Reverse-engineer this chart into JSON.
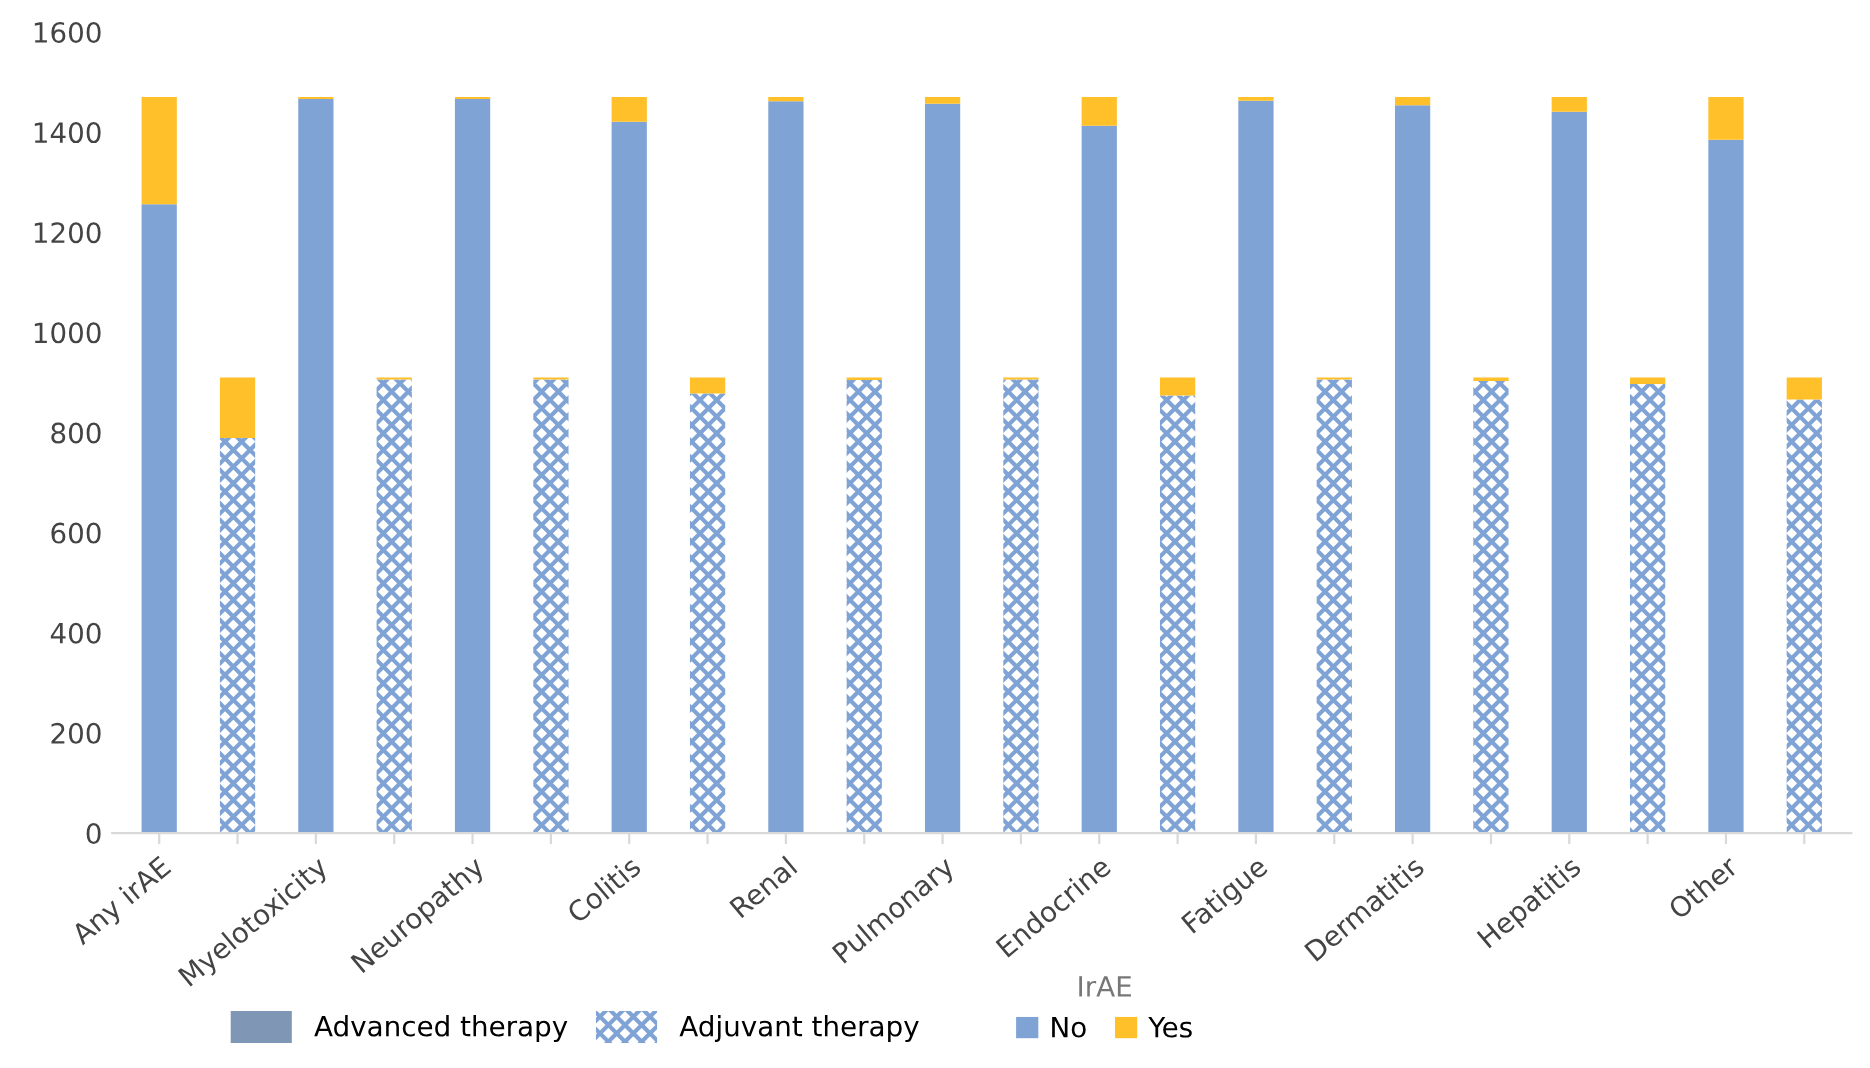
{
  "chart_data": {
    "type": "bar",
    "stacked": true,
    "legend_title": "IrAE",
    "legend": "bottom",
    "grid": false,
    "categories": [
      "Any irAE",
      null,
      "Myelotoxicity",
      null,
      "Neuropathy",
      null,
      "Colitis",
      null,
      "Renal",
      null,
      "Pulmonary",
      null,
      "Endocrine",
      null,
      "Fatigue",
      null,
      "Dermatitis",
      null,
      "Hepatitis",
      null,
      "Other",
      null
    ],
    "series": [
      {
        "name": "No",
        "color": "#7fa3d5",
        "values": [
          1256,
          789,
          1466,
          906,
          1466,
          906,
          1421,
          878,
          1462,
          905,
          1457,
          906,
          1413,
          874,
          1463,
          906,
          1454,
          903,
          1441,
          897,
          1385,
          866
        ]
      },
      {
        "name": "Yes",
        "color": "#ffc02a",
        "values": [
          214,
          121,
          4,
          4,
          4,
          4,
          49,
          32,
          8,
          5,
          13,
          4,
          57,
          36,
          7,
          4,
          16,
          7,
          29,
          13,
          85,
          44
        ]
      }
    ],
    "annotations": [
      "Advanced therapy",
      "Adjuvant therapy"
    ],
    "ylim": [
      0,
      1600
    ],
    "yticks": [
      0,
      200,
      400,
      600,
      800,
      1000,
      1200,
      1400,
      1600
    ]
  }
}
